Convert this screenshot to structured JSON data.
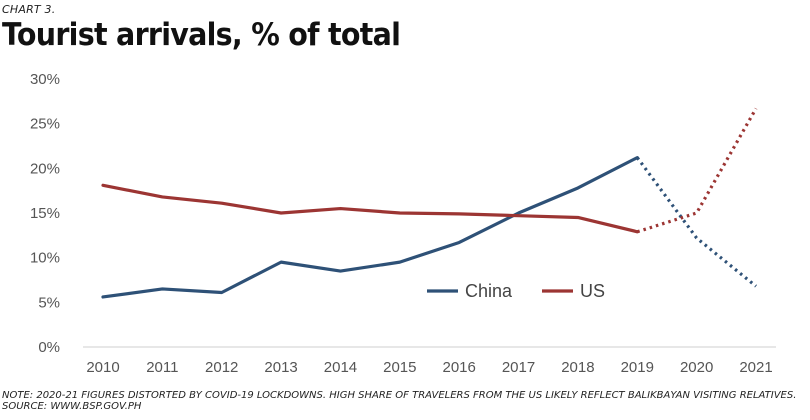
{
  "header": {
    "kicker": "CHART 3.",
    "title": "Tourist arrivals, % of total"
  },
  "footer": {
    "note": "NOTE: 2020-21 FIGURES DISTORTED BY COVID-19 LOCKDOWNS. HIGH SHARE OF TRAVELERS FROM THE US LIKELY REFLECT BALIKBAYAN VISITING RELATIVES.",
    "source": "SOURCE: WWW.BSP.GOV.PH"
  },
  "chart_data": {
    "type": "line",
    "title": "Tourist arrivals, % of total",
    "x": [
      "2010",
      "2011",
      "2012",
      "2013",
      "2014",
      "2015",
      "2016",
      "2017",
      "2018",
      "2019",
      "2020",
      "2021"
    ],
    "ylim": [
      0,
      30
    ],
    "yticks": [
      0,
      5,
      10,
      15,
      20,
      25,
      30
    ],
    "ytick_labels": [
      "0%",
      "5%",
      "10%",
      "15%",
      "20%",
      "25%",
      "30%"
    ],
    "grid": false,
    "legend_position": "bottom-right inside",
    "dotted_from_index": 9,
    "series": [
      {
        "name": "China",
        "color": "#2e5177",
        "values": [
          5.6,
          6.5,
          6.1,
          9.5,
          8.5,
          9.5,
          11.7,
          15.0,
          17.8,
          21.2,
          12.2,
          6.8
        ]
      },
      {
        "name": "US",
        "color": "#9c3533",
        "values": [
          18.1,
          16.8,
          16.1,
          15.0,
          15.5,
          15.0,
          14.9,
          14.7,
          14.5,
          12.9,
          15.0,
          26.7
        ]
      }
    ]
  }
}
